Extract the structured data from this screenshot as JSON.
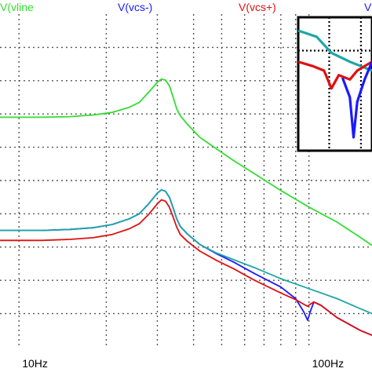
{
  "chart_data": {
    "type": "line",
    "x_axis": {
      "scale": "log",
      "unit": "Hz",
      "range": [
        8.6,
        165
      ],
      "tick_labels": [
        {
          "value": 10,
          "label": "10Hz"
        },
        {
          "value": 100,
          "label": "100Hz"
        }
      ]
    },
    "y_axis": {
      "range": [
        0,
        10
      ],
      "tick_labels": []
    },
    "grid": true,
    "legend_placement": "top",
    "legend": [
      {
        "label": "V(vline",
        "series": "vline",
        "color": "#33dd33"
      },
      {
        "label": "V(vcs-)",
        "series": "vcs_minus",
        "color": "#1a1aff"
      },
      {
        "label": "V(vcs+)",
        "series": "vcs_plus",
        "color": "#e01010"
      },
      {
        "label": "V",
        "series": "vcs_minus",
        "color": "#1a1aff"
      }
    ],
    "series": [
      {
        "name": "V(vline",
        "color": "#33dd33",
        "x": [
          8.6,
          12,
          15,
          18,
          21,
          24,
          26,
          28,
          30,
          31,
          32,
          33,
          34,
          35,
          36,
          38,
          42,
          48,
          55,
          65,
          80,
          100,
          125,
          150,
          165
        ],
        "y": [
          6.9,
          6.9,
          6.92,
          6.97,
          7.05,
          7.2,
          7.35,
          7.65,
          7.95,
          8.05,
          8.02,
          7.85,
          7.5,
          7.15,
          6.95,
          6.7,
          6.3,
          5.95,
          5.6,
          5.2,
          4.7,
          4.2,
          3.75,
          3.3,
          3.05
        ]
      },
      {
        "name": "V(vcs-)",
        "color": "#1a1aff",
        "x": [
          8.6,
          12,
          15,
          18,
          21,
          24,
          26,
          28,
          30,
          31,
          32,
          33,
          34,
          35,
          36,
          38,
          42,
          48,
          55,
          65,
          80,
          90,
          96,
          99,
          101,
          104,
          110,
          125,
          150,
          165
        ],
        "y": [
          3.5,
          3.5,
          3.53,
          3.58,
          3.68,
          3.85,
          4.0,
          4.3,
          4.62,
          4.72,
          4.68,
          4.5,
          4.18,
          3.85,
          3.62,
          3.4,
          3.08,
          2.8,
          2.55,
          2.2,
          1.8,
          1.45,
          1.05,
          0.8,
          1.05,
          1.35,
          1.25,
          0.88,
          0.5,
          0.35
        ]
      },
      {
        "name": "V(vcs+)",
        "color": "#e01010",
        "x": [
          8.6,
          12,
          15,
          18,
          21,
          24,
          26,
          28,
          30,
          31,
          32,
          33,
          34,
          35,
          36,
          38,
          42,
          48,
          55,
          65,
          80,
          90,
          96,
          99,
          101,
          104,
          110,
          125,
          150,
          165
        ],
        "y": [
          3.2,
          3.2,
          3.23,
          3.28,
          3.38,
          3.55,
          3.7,
          3.98,
          4.3,
          4.42,
          4.38,
          4.2,
          3.9,
          3.6,
          3.38,
          3.18,
          2.88,
          2.6,
          2.35,
          2.0,
          1.62,
          1.42,
          1.28,
          1.22,
          1.28,
          1.35,
          1.25,
          0.88,
          0.5,
          0.35
        ]
      },
      {
        "name": "",
        "color": "#1ea6a6",
        "x": [
          8.6,
          12,
          15,
          18,
          21,
          24,
          26,
          28,
          30,
          31,
          32,
          33,
          34,
          35,
          36,
          38,
          42,
          48,
          55,
          65,
          80,
          100,
          125,
          150,
          165
        ],
        "y": [
          3.5,
          3.5,
          3.53,
          3.58,
          3.68,
          3.85,
          4.0,
          4.3,
          4.62,
          4.72,
          4.68,
          4.5,
          4.18,
          3.85,
          3.62,
          3.4,
          3.08,
          2.82,
          2.62,
          2.38,
          2.05,
          1.75,
          1.45,
          1.15,
          1.0
        ]
      }
    ],
    "inset": {
      "grid": true,
      "series": [
        {
          "color": "#1ea6a6",
          "x": [
            0,
            0.25,
            0.45,
            0.7,
            0.85,
            1.0
          ],
          "y": [
            0.85,
            0.78,
            0.6,
            0.5,
            0.45,
            0.4
          ]
        },
        {
          "color": "#e01010",
          "x": [
            0,
            0.2,
            0.35,
            0.45,
            0.55,
            0.7,
            0.8,
            0.9,
            1.0
          ],
          "y": [
            0.5,
            0.45,
            0.4,
            0.2,
            0.35,
            0.3,
            0.4,
            0.45,
            0.5
          ]
        },
        {
          "color": "#1a1aff",
          "x": [
            0.6,
            0.7,
            0.75,
            0.8,
            0.9,
            1.0
          ],
          "y": [
            0.32,
            0.1,
            -0.35,
            0.05,
            0.3,
            0.5
          ]
        }
      ]
    }
  }
}
